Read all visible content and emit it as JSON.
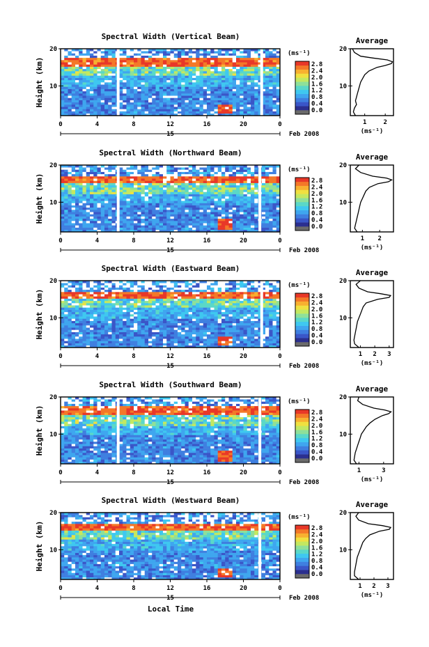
{
  "figure": {
    "x_axis_label": "Local Time",
    "date_label": "Feb 2008",
    "day_label": "15"
  },
  "colors": {
    "scale": [
      "#2b2f8f",
      "#3a56c8",
      "#3f7fe0",
      "#3fa6ef",
      "#3fc8f0",
      "#5ad8c8",
      "#8ee09a",
      "#c4e860",
      "#f0e040",
      "#f8b030",
      "#f47828",
      "#e83828"
    ],
    "bottom": "#6b6b6b"
  },
  "chart_data": [
    {
      "type": "heatmap",
      "title": "Spectral Width (Vertical Beam)",
      "ylabel": "Height (km)",
      "xlabel": "",
      "x_ticks": [
        "0",
        "4",
        "8",
        "12",
        "16",
        "20",
        "0"
      ],
      "xlim": [
        0,
        24
      ],
      "y_ticks": [
        "10",
        "20"
      ],
      "ylim": [
        2,
        20
      ],
      "colorbar": {
        "unit": "(ms⁻¹)",
        "ticks": [
          "0.0",
          "0.4",
          "0.8",
          "1.2",
          "1.6",
          "2.0",
          "2.4",
          "2.8"
        ],
        "range": [
          0.0,
          2.8
        ]
      },
      "features": {
        "strong_layer_km": [
          15.5,
          17.5
        ],
        "convective_patch": {
          "time_h": 18.0,
          "height_km": [
            2.5,
            5.0
          ]
        },
        "gaps_h": [
          6.3,
          22.0
        ]
      },
      "profile": {
        "title": "Average",
        "xlabel": "(ms⁻¹)",
        "x_ticks": [
          "1",
          "2"
        ],
        "xlim": [
          0.3,
          2.4
        ],
        "y_ticks": [
          "10",
          "20"
        ],
        "heights": [
          2,
          3,
          4,
          5,
          6,
          7,
          8,
          9,
          10,
          11,
          12,
          13,
          14,
          15,
          15.5,
          16,
          16.5,
          17,
          17.5,
          18,
          19,
          20
        ],
        "values": [
          0.55,
          0.45,
          0.5,
          0.6,
          0.55,
          0.6,
          0.65,
          0.7,
          0.75,
          0.8,
          0.9,
          1.0,
          1.2,
          1.6,
          2.0,
          2.3,
          2.35,
          2.1,
          1.4,
          0.8,
          0.5,
          0.4
        ]
      }
    },
    {
      "type": "heatmap",
      "title": "Spectral Width (Northward Beam)",
      "ylabel": "Height (km)",
      "xlabel": "",
      "x_ticks": [
        "0",
        "4",
        "8",
        "12",
        "16",
        "20",
        "0"
      ],
      "xlim": [
        0,
        24
      ],
      "y_ticks": [
        "10",
        "20"
      ],
      "ylim": [
        2,
        20
      ],
      "colorbar": {
        "unit": "(ms⁻¹)",
        "ticks": [
          "0.0",
          "0.4",
          "0.8",
          "1.2",
          "1.6",
          "2.0",
          "2.4",
          "2.8"
        ],
        "range": [
          0.0,
          2.8
        ]
      },
      "features": {
        "strong_layer_km": [
          15.0,
          17.0
        ],
        "convective_patch": {
          "time_h": 18.0,
          "height_km": [
            2.5,
            5.5
          ]
        },
        "gaps_h": [
          6.3,
          21.8
        ]
      },
      "profile": {
        "title": "Average",
        "xlabel": "(ms⁻¹)",
        "x_ticks": [
          "1",
          "2"
        ],
        "xlim": [
          0.3,
          2.8
        ],
        "y_ticks": [
          "10",
          "20"
        ],
        "heights": [
          2,
          3,
          4,
          5,
          6,
          7,
          8,
          9,
          10,
          11,
          12,
          13,
          14,
          15,
          15.5,
          16,
          16.5,
          17,
          18,
          19,
          20
        ],
        "values": [
          0.7,
          0.55,
          0.6,
          0.65,
          0.7,
          0.75,
          0.8,
          0.85,
          0.9,
          1.0,
          1.1,
          1.2,
          1.4,
          1.9,
          2.5,
          2.7,
          2.4,
          1.6,
          0.9,
          0.6,
          0.8
        ]
      }
    },
    {
      "type": "heatmap",
      "title": "Spectral Width (Eastward Beam)",
      "ylabel": "Height (km)",
      "xlabel": "",
      "x_ticks": [
        "0",
        "4",
        "8",
        "12",
        "16",
        "20",
        "0"
      ],
      "xlim": [
        0,
        24
      ],
      "y_ticks": [
        "10",
        "20"
      ],
      "ylim": [
        2,
        20
      ],
      "colorbar": {
        "unit": "(ms⁻¹)",
        "ticks": [
          "0.0",
          "0.4",
          "0.8",
          "1.2",
          "1.6",
          "2.0",
          "2.4",
          "2.8"
        ],
        "range": [
          0.0,
          2.8
        ]
      },
      "features": {
        "strong_layer_km": [
          15.5,
          17.0
        ],
        "convective_patch": {
          "time_h": 18.0,
          "height_km": [
            2.5,
            5.0
          ]
        },
        "gaps_h": [
          22.0
        ]
      },
      "profile": {
        "title": "Average",
        "xlabel": "(ms⁻¹)",
        "x_ticks": [
          "1",
          "2",
          "3"
        ],
        "xlim": [
          0.3,
          3.3
        ],
        "y_ticks": [
          "10",
          "20"
        ],
        "heights": [
          2,
          3,
          4,
          5,
          6,
          7,
          8,
          9,
          10,
          11,
          12,
          13,
          14,
          15,
          15.5,
          16,
          16.5,
          17,
          18,
          19,
          20
        ],
        "values": [
          0.9,
          0.6,
          0.55,
          0.6,
          0.65,
          0.7,
          0.75,
          0.8,
          0.9,
          1.0,
          1.1,
          1.2,
          1.4,
          2.2,
          3.0,
          3.1,
          2.4,
          1.5,
          0.9,
          0.7,
          1.0
        ]
      }
    },
    {
      "type": "heatmap",
      "title": "Spectral Width (Southward Beam)",
      "ylabel": "Height (km)",
      "xlabel": "",
      "x_ticks": [
        "0",
        "4",
        "8",
        "12",
        "16",
        "20",
        "0"
      ],
      "xlim": [
        0,
        24
      ],
      "y_ticks": [
        "10",
        "20"
      ],
      "ylim": [
        2,
        20
      ],
      "colorbar": {
        "unit": "(ms⁻¹)",
        "ticks": [
          "0.0",
          "0.4",
          "0.8",
          "1.2",
          "1.6",
          "2.0",
          "2.4",
          "2.8"
        ],
        "range": [
          0.0,
          2.8
        ]
      },
      "features": {
        "strong_layer_km": [
          15.0,
          17.5
        ],
        "convective_patch": {
          "time_h": 18.0,
          "height_km": [
            2.5,
            5.5
          ]
        },
        "gaps_h": [
          6.3,
          21.8
        ]
      },
      "profile": {
        "title": "Average",
        "xlabel": "(ms⁻¹)",
        "x_ticks": [
          "1",
          "3"
        ],
        "xlim": [
          0.3,
          3.8
        ],
        "y_ticks": [
          "10",
          "20"
        ],
        "heights": [
          2,
          3,
          4,
          5,
          6,
          7,
          8,
          9,
          10,
          11,
          12,
          13,
          14,
          15,
          15.5,
          16,
          16.5,
          17,
          18,
          19,
          20
        ],
        "values": [
          0.8,
          0.6,
          0.65,
          0.7,
          0.8,
          0.9,
          1.0,
          1.1,
          1.2,
          1.4,
          1.6,
          1.9,
          2.3,
          2.9,
          3.4,
          3.6,
          3.1,
          2.2,
          1.3,
          0.9,
          1.0
        ]
      }
    },
    {
      "type": "heatmap",
      "title": "Spectral Width (Westward Beam)",
      "ylabel": "Height (km)",
      "xlabel": "Local Time",
      "x_ticks": [
        "0",
        "4",
        "8",
        "12",
        "16",
        "20",
        "0"
      ],
      "xlim": [
        0,
        24
      ],
      "y_ticks": [
        "10",
        "20"
      ],
      "ylim": [
        2,
        20
      ],
      "colorbar": {
        "unit": "(ms⁻¹)",
        "ticks": [
          "0.0",
          "0.4",
          "0.8",
          "1.2",
          "1.6",
          "2.0",
          "2.4",
          "2.8"
        ],
        "range": [
          0.0,
          2.8
        ]
      },
      "features": {
        "strong_layer_km": [
          15.5,
          17.0
        ],
        "convective_patch": {
          "time_h": 18.0,
          "height_km": [
            2.5,
            5.0
          ]
        },
        "gaps_h": [
          21.8
        ]
      },
      "profile": {
        "title": "Average",
        "xlabel": "(ms⁻¹)",
        "x_ticks": [
          "1",
          "2",
          "3"
        ],
        "xlim": [
          0.3,
          3.4
        ],
        "y_ticks": [
          "10",
          "20"
        ],
        "heights": [
          2,
          3,
          4,
          5,
          6,
          7,
          8,
          9,
          10,
          11,
          12,
          13,
          14,
          15,
          15.5,
          16,
          16.5,
          17,
          18,
          19,
          20
        ],
        "values": [
          0.9,
          0.6,
          0.6,
          0.65,
          0.7,
          0.75,
          0.8,
          0.9,
          1.0,
          1.1,
          1.2,
          1.4,
          1.7,
          2.4,
          3.1,
          3.2,
          2.6,
          1.6,
          0.9,
          0.7,
          0.9
        ]
      }
    }
  ]
}
